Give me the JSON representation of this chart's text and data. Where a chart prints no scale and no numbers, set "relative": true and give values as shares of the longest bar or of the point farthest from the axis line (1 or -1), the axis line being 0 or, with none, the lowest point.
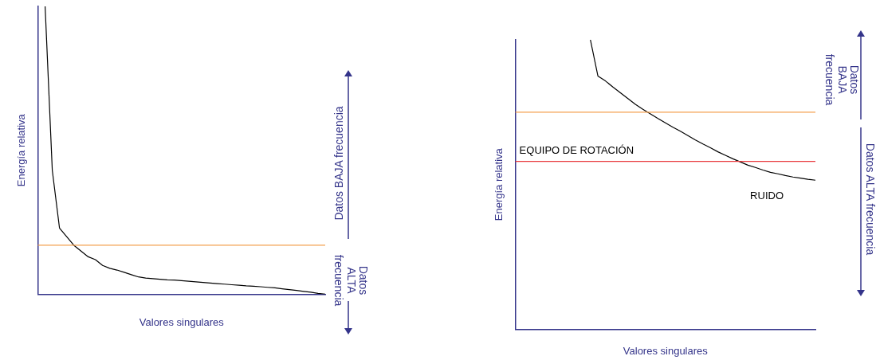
{
  "chart_data": [
    {
      "type": "line",
      "relative": true,
      "xlabel": "Valores singulares",
      "ylabel": "Energía relativa",
      "categories": [
        null,
        null,
        null,
        null,
        null,
        null,
        null,
        null,
        null,
        null,
        null,
        null,
        null,
        null,
        null,
        null,
        null,
        null,
        null,
        null,
        null,
        null,
        null,
        null,
        null,
        null,
        null,
        null,
        null,
        null,
        null,
        null,
        null,
        null,
        null,
        null,
        null,
        null,
        null,
        null,
        null
      ],
      "series": [
        {
          "color": "#000000",
          "values": [
            null,
            1,
            0.43,
            0.23,
            0.2,
            0.17,
            0.15,
            0.13,
            0.12,
            0.1,
            0.09,
            0.084,
            0.076,
            0.068,
            0.06,
            0.056,
            0.054,
            0.052,
            0.05,
            0.049,
            0.047,
            0.045,
            0.043,
            0.041,
            0.039,
            0.037,
            0.035,
            0.033,
            0.031,
            0.029,
            0.028,
            0.026,
            0.024,
            0.022,
            0.019,
            0.016,
            0.013,
            0.01,
            0.007,
            0.003,
            0
          ]
        }
      ],
      "ref_lines": [
        {
          "axis": "y",
          "value": 0.17,
          "color": "#f4a04f"
        }
      ],
      "annotations": [
        "Datos BAJA frecuencia",
        "Datos ALTA frecuencia"
      ]
    },
    {
      "type": "line",
      "relative": true,
      "xlabel": "Valores singulares",
      "ylabel": "Energía relativa",
      "categories": [
        null,
        null,
        null,
        null,
        null,
        null,
        null,
        null,
        null,
        null,
        null,
        null,
        null,
        null,
        null,
        null,
        null,
        null,
        null,
        null,
        null,
        null,
        null,
        null,
        null,
        null,
        null,
        null,
        null,
        null,
        null,
        null,
        null,
        null,
        null,
        null,
        null,
        null,
        null,
        null,
        null
      ],
      "series": [
        {
          "name": "RUIDO",
          "color": "#000000",
          "values": [
            null,
            null,
            null,
            null,
            null,
            null,
            null,
            null,
            null,
            null,
            1,
            0.875,
            0.858,
            0.837,
            0.817,
            0.797,
            0.777,
            0.76,
            0.744,
            0.728,
            0.713,
            0.698,
            0.684,
            0.669,
            0.654,
            0.64,
            0.627,
            0.613,
            0.601,
            0.589,
            0.578,
            0.567,
            0.559,
            0.55,
            0.542,
            0.537,
            0.531,
            0.526,
            0.522,
            0.518,
            0.515
          ]
        }
      ],
      "ref_lines": [
        {
          "axis": "y",
          "value": 0.75,
          "color": "#f4a04f"
        },
        {
          "axis": "y",
          "value": 0.58,
          "color": "#e8383d",
          "label": "EQUIPO DE ROTACIÓN"
        }
      ],
      "annotations": [
        "Datos BAJA frecuencia",
        "Datos ALTA frecuencia"
      ]
    }
  ]
}
